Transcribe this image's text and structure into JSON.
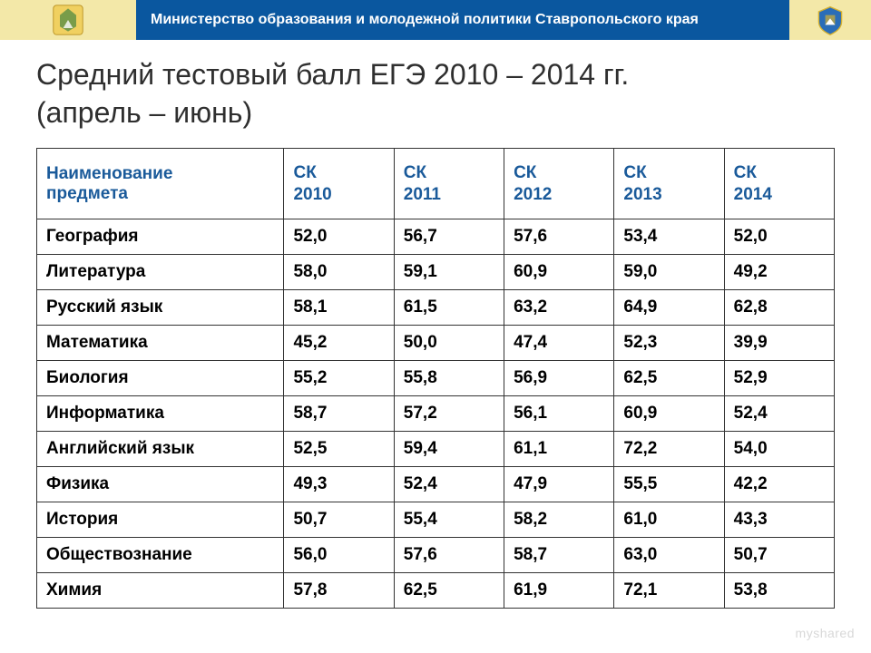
{
  "header": {
    "ministry_text": "Министерство образования и молодежной политики Ставропольского края",
    "bg_color_bar": "#0a579f",
    "bg_color_side": "#f3e8a8",
    "text_color": "#ffffff"
  },
  "title": {
    "line1": "Средний тестовый балл ЕГЭ 2010 – 2014 гг.",
    "line2": "(апрель – июнь)",
    "fontsize": 32,
    "color": "#2f2f2f"
  },
  "table": {
    "type": "table",
    "header_color": "#1a5a9a",
    "border_color": "#333333",
    "cell_font_weight": "bold",
    "fontsize": 19,
    "columns": [
      "Наименование предмета",
      "СК 2010",
      "СК 2011",
      "СК 2012",
      "СК 2013",
      "СК 2014"
    ],
    "column_breaks": [
      "Наименование\nпредмета",
      "СК\n2010",
      "СК\n2011",
      "СК\n2012",
      "СК\n2013",
      "СК\n2014"
    ],
    "rows": [
      {
        "subject": "География",
        "v": [
          "52,0",
          "56,7",
          "57,6",
          "53,4",
          "52,0"
        ]
      },
      {
        "subject": "Литература",
        "v": [
          "58,0",
          "59,1",
          "60,9",
          "59,0",
          "49,2"
        ]
      },
      {
        "subject": "Русский язык",
        "v": [
          "58,1",
          "61,5",
          "63,2",
          "64,9",
          "62,8"
        ]
      },
      {
        "subject": "Математика",
        "v": [
          "45,2",
          "50,0",
          "47,4",
          "52,3",
          "39,9"
        ]
      },
      {
        "subject": "Биология",
        "v": [
          "55,2",
          "55,8",
          "56,9",
          "62,5",
          "52,9"
        ]
      },
      {
        "subject": "Информатика",
        "v": [
          "58,7",
          "57,2",
          "56,1",
          "60,9",
          "52,4"
        ]
      },
      {
        "subject": "Английский язык",
        "v": [
          "52,5",
          "59,4",
          "61,1",
          "72,2",
          "54,0"
        ]
      },
      {
        "subject": "Физика",
        "v": [
          "49,3",
          "52,4",
          "47,9",
          "55,5",
          "42,2"
        ]
      },
      {
        "subject": "История",
        "v": [
          "50,7",
          "55,4",
          "58,2",
          "61,0",
          "43,3"
        ]
      },
      {
        "subject": "Обществознание",
        "v": [
          "56,0",
          "57,6",
          "58,7",
          "63,0",
          "50,7"
        ]
      },
      {
        "subject": "Химия",
        "v": [
          "57,8",
          "62,5",
          "61,9",
          "72,1",
          "53,8"
        ]
      }
    ]
  },
  "watermark": "myshared"
}
